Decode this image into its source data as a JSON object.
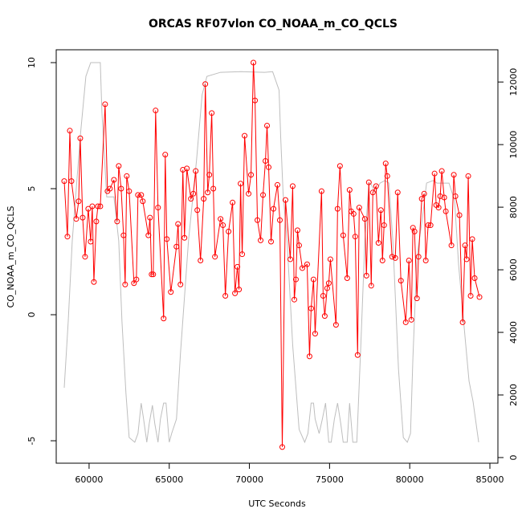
{
  "chart_data": {
    "type": "line",
    "title": "ORCAS RF07vlon CO_NOAA_m_CO_QCLS",
    "xlabel": "UTC Seconds",
    "ylabel": "CO_NOAA_m_CO_QCLS",
    "xlim": [
      57950,
      85500
    ],
    "ylim": [
      -5.89,
      10.51
    ],
    "y2lim": [
      -180,
      13030
    ],
    "xticks": [
      60000,
      65000,
      70000,
      75000,
      80000,
      85000
    ],
    "yticks": [
      -5,
      0,
      5,
      10
    ],
    "y2ticks": [
      0,
      2000,
      4000,
      6000,
      8000,
      10000,
      12000
    ],
    "series": [
      {
        "color": "#bebebe",
        "axis": "y2",
        "marker": false,
        "x": [
          58450,
          58700,
          58950,
          59450,
          59800,
          60100,
          60700,
          60800,
          61100,
          61550,
          61850,
          62050,
          62300,
          62500,
          62850,
          63050,
          63250,
          63400,
          63600,
          63750,
          63950,
          64100,
          64300,
          64450,
          64650,
          64800,
          65000,
          65150,
          65450,
          65700,
          66200,
          66700,
          67050,
          67350,
          68200,
          69450,
          70950,
          71450,
          71850,
          71950,
          72100,
          72350,
          72700,
          73100,
          73450,
          73650,
          73850,
          74000,
          74100,
          74350,
          74550,
          74750,
          74950,
          75100,
          75300,
          75500,
          75700,
          75850,
          76100,
          76250,
          76450,
          76700,
          76950,
          77200,
          77450,
          77550,
          77850,
          78150,
          78450,
          78700,
          78950,
          79300,
          79600,
          79850,
          80050,
          80200,
          80450,
          80800,
          81050,
          81450,
          81700,
          82000,
          82450,
          82800,
          83050,
          83450,
          83700,
          83950,
          84300
        ],
        "values": [
          2230,
          4360,
          6920,
          10260,
          12180,
          12620,
          12620,
          11030,
          8330,
          8330,
          6920,
          4360,
          2050,
          640,
          490,
          770,
          1740,
          1230,
          490,
          1080,
          1670,
          1080,
          490,
          1230,
          1740,
          1740,
          490,
          770,
          1230,
          3330,
          6920,
          9490,
          11590,
          12180,
          12310,
          12330,
          12310,
          12330,
          11740,
          10260,
          8460,
          6920,
          3590,
          900,
          490,
          770,
          1740,
          1740,
          1230,
          770,
          1230,
          1740,
          490,
          490,
          1230,
          1740,
          1080,
          490,
          490,
          1740,
          490,
          490,
          3590,
          6920,
          8720,
          8770,
          8460,
          8770,
          8850,
          8770,
          6920,
          2820,
          640,
          490,
          770,
          3210,
          6410,
          7690,
          8770,
          8850,
          8770,
          8770,
          8770,
          8210,
          6150,
          3850,
          2440,
          1790,
          490
        ]
      },
      {
        "color": "#ff0000",
        "axis": "y",
        "marker": true,
        "x": [
          58450,
          58650,
          58800,
          58900,
          59200,
          59350,
          59450,
          59600,
          59750,
          59950,
          60100,
          60200,
          60300,
          60450,
          60550,
          60700,
          61000,
          61150,
          61300,
          61550,
          61750,
          61850,
          62000,
          62150,
          62250,
          62350,
          62500,
          62800,
          62950,
          63050,
          63250,
          63350,
          63700,
          63800,
          63900,
          64000,
          64150,
          64300,
          64650,
          64750,
          64850,
          65100,
          65450,
          65550,
          65700,
          65850,
          65950,
          66100,
          66350,
          66500,
          66650,
          66750,
          66950,
          67150,
          67250,
          67400,
          67500,
          67650,
          67750,
          67850,
          68200,
          68350,
          68500,
          68700,
          68950,
          69100,
          69250,
          69350,
          69450,
          69550,
          69700,
          69950,
          70100,
          70250,
          70350,
          70500,
          70700,
          70850,
          71000,
          71100,
          71200,
          71350,
          71500,
          71750,
          71900,
          72050,
          72250,
          72550,
          72700,
          72800,
          72900,
          73000,
          73100,
          73300,
          73600,
          73750,
          73850,
          74000,
          74100,
          74500,
          74600,
          74700,
          74850,
          74950,
          75050,
          75400,
          75500,
          75650,
          75850,
          76100,
          76250,
          76350,
          76500,
          76600,
          76750,
          76850,
          77200,
          77300,
          77450,
          77600,
          77700,
          77900,
          78050,
          78200,
          78300,
          78400,
          78500,
          78600,
          78900,
          79100,
          79250,
          79450,
          79750,
          79950,
          80100,
          80200,
          80300,
          80450,
          80550,
          80750,
          80900,
          81000,
          81150,
          81300,
          81550,
          81650,
          81800,
          81900,
          82000,
          82150,
          82250,
          82600,
          82750,
          82850,
          83100,
          83300,
          83450,
          83550,
          83650,
          83800,
          83900,
          84050,
          84350
        ],
        "values": [
          5.3,
          3.1,
          7.3,
          5.3,
          3.8,
          4.5,
          7.0,
          3.85,
          2.3,
          4.2,
          2.9,
          4.3,
          1.3,
          3.7,
          4.3,
          4.3,
          8.35,
          4.9,
          5.0,
          5.35,
          3.7,
          5.9,
          5.0,
          3.15,
          1.2,
          5.5,
          4.9,
          1.25,
          1.4,
          4.75,
          4.75,
          4.5,
          3.15,
          3.85,
          1.6,
          1.6,
          8.1,
          4.25,
          -0.15,
          6.35,
          3.0,
          0.9,
          2.7,
          3.6,
          1.2,
          5.75,
          3.05,
          5.8,
          4.6,
          4.8,
          5.7,
          4.15,
          2.15,
          4.6,
          9.15,
          4.85,
          5.55,
          8.0,
          5.0,
          2.3,
          3.8,
          3.55,
          0.75,
          3.3,
          4.45,
          0.85,
          1.9,
          1.0,
          5.2,
          2.4,
          7.1,
          4.8,
          5.55,
          10.0,
          8.5,
          3.75,
          2.95,
          4.75,
          6.1,
          7.5,
          5.85,
          2.9,
          4.2,
          5.15,
          3.75,
          -5.25,
          4.55,
          2.2,
          5.1,
          0.6,
          1.4,
          3.35,
          2.75,
          1.85,
          2.0,
          -1.65,
          0.25,
          1.4,
          -0.75,
          4.9,
          0.75,
          -0.05,
          1.05,
          1.25,
          2.2,
          -0.4,
          4.2,
          5.9,
          3.15,
          1.45,
          4.95,
          4.1,
          4.0,
          3.1,
          -1.6,
          4.25,
          3.8,
          1.55,
          5.25,
          1.15,
          4.85,
          5.1,
          2.85,
          4.15,
          2.15,
          3.55,
          6.0,
          5.5,
          2.3,
          2.25,
          4.85,
          1.35,
          -0.3,
          2.15,
          -0.2,
          3.45,
          3.3,
          0.65,
          2.3,
          4.6,
          4.8,
          2.15,
          3.55,
          3.55,
          5.6,
          4.35,
          4.25,
          4.7,
          5.7,
          4.65,
          4.1,
          2.75,
          5.55,
          4.7,
          3.95,
          -0.3,
          2.75,
          2.2,
          5.5,
          0.75,
          3.0,
          1.45,
          0.7
        ]
      }
    ]
  }
}
